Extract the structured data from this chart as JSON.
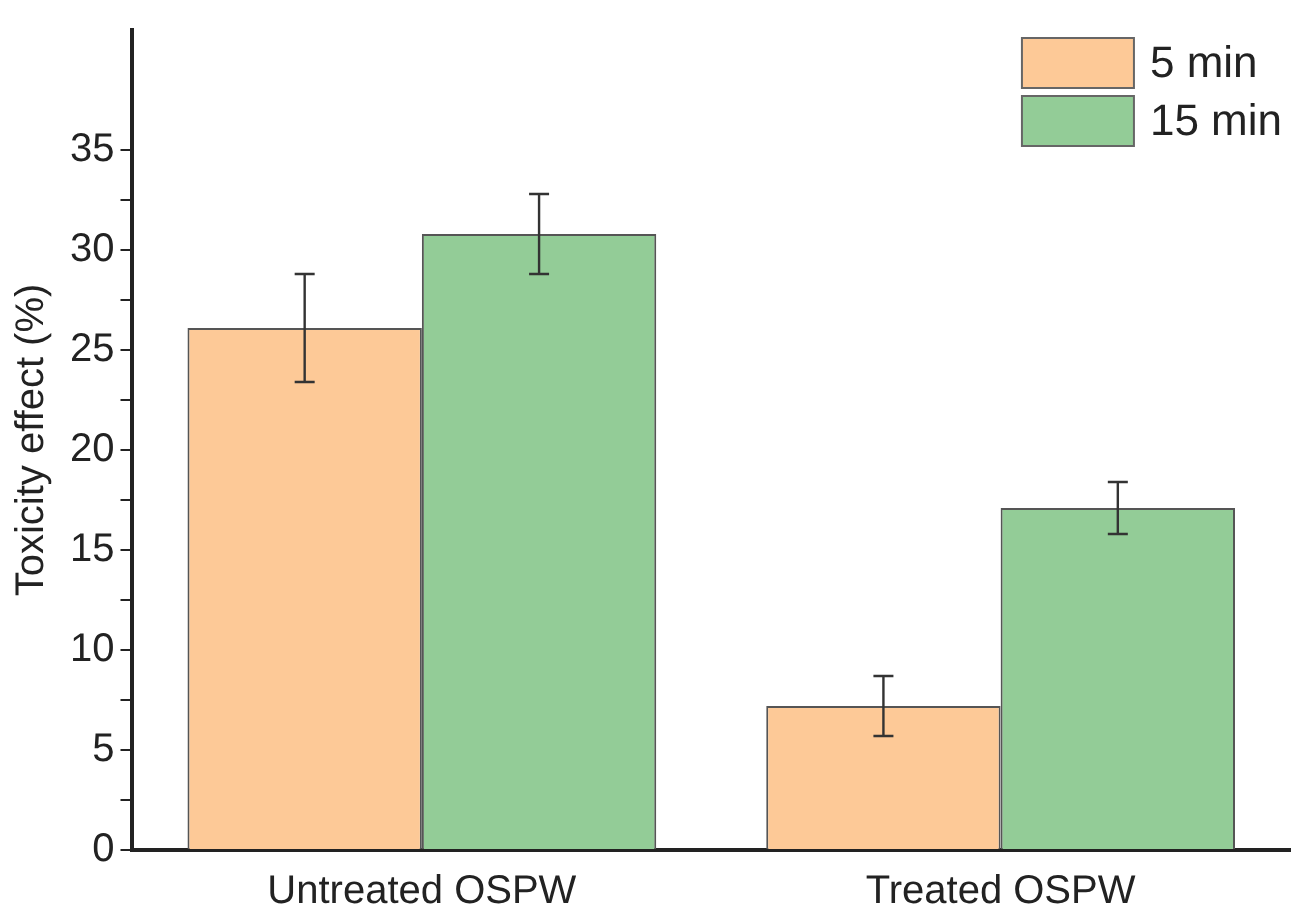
{
  "chart_data": {
    "type": "bar",
    "ylabel": "Toxicity effect (%)",
    "categories": [
      "Untreated OSPW",
      "Treated OSPW"
    ],
    "series": [
      {
        "name": "5 min",
        "color": "#fdc997",
        "values": [
          26.1,
          7.2
        ],
        "errors": [
          2.7,
          1.5
        ]
      },
      {
        "name": "15 min",
        "color": "#93cc97",
        "values": [
          30.8,
          17.1
        ],
        "errors": [
          2.0,
          1.3
        ]
      }
    ],
    "ylim": [
      0,
      41
    ],
    "yticks": [
      0,
      {
        "value": 2.5,
        "label": null
      },
      5,
      {
        "value": 7.5,
        "label": null
      },
      10,
      {
        "value": 12.5,
        "label": null
      },
      15,
      {
        "value": 17.5,
        "label": null
      },
      20,
      {
        "value": 22.5,
        "label": null
      },
      25,
      {
        "value": 27.5,
        "label": null
      },
      30,
      {
        "value": 32.5,
        "label": null
      },
      35
    ],
    "grid": false,
    "legend": "top right"
  }
}
